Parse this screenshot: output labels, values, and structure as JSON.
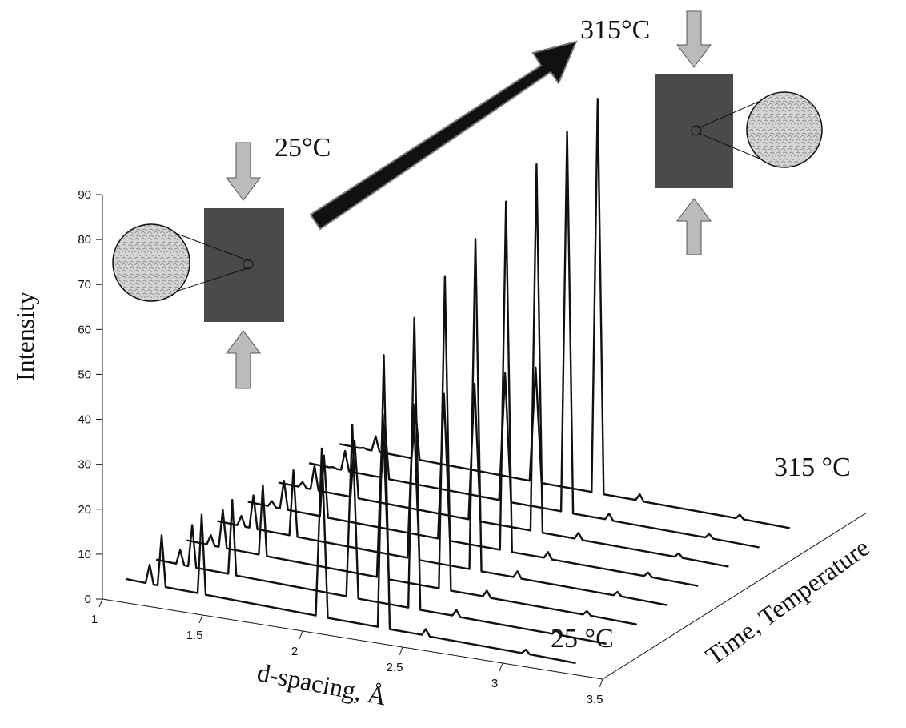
{
  "chart_data": {
    "type": "waterfall",
    "ylabel": "Intensity",
    "xlabel": "d-spacing, Å",
    "zlabel": "Time, Temperature",
    "annotations": [
      "315°C",
      "25°C",
      "315 °C",
      "25 °C"
    ],
    "xlim": [
      1,
      3.5
    ],
    "xticks": [
      1,
      1.5,
      2,
      2.5,
      3,
      3.5
    ],
    "ylim": [
      0,
      90
    ],
    "yticks": [
      0,
      10,
      20,
      30,
      40,
      50,
      60,
      70,
      80,
      90
    ],
    "color": "#111111",
    "x": [
      1.05,
      1.15,
      1.17,
      1.19,
      1.21,
      1.23,
      1.25,
      1.41,
      1.43,
      1.45,
      2.0,
      2.03,
      2.06,
      2.31,
      2.34,
      2.37,
      2.53,
      2.55,
      2.57,
      3.03,
      3.05,
      3.07,
      3.3
    ],
    "series": [
      {
        "values": [
          3,
          2.8,
          7,
          2.7,
          2.7,
          14,
          2.6,
          2.4,
          20,
          2.3,
          1.6,
          39,
          1.5,
          1.3,
          62,
          1.2,
          1.1,
          2.5,
          1.0,
          0.6,
          1.5,
          0.6,
          0.3
        ]
      },
      {
        "values": [
          3,
          2.8,
          6,
          2.7,
          2.7,
          12,
          2.6,
          2.4,
          19,
          2.3,
          1.6,
          40,
          1.5,
          1.3,
          66,
          1.2,
          1.1,
          2.5,
          1.0,
          0.6,
          1.5,
          0.6,
          0.3
        ]
      },
      {
        "values": [
          3,
          2.8,
          5,
          2.7,
          2.7,
          11,
          2.6,
          2.4,
          18,
          2.3,
          1.6,
          38,
          1.5,
          1.3,
          71,
          1.2,
          1.1,
          2.5,
          1.0,
          0.6,
          1.5,
          0.6,
          0.3
        ]
      },
      {
        "values": [
          3,
          2.8,
          5,
          2.7,
          2.7,
          10,
          2.6,
          2.4,
          17,
          2.3,
          1.6,
          36,
          1.5,
          1.3,
          75,
          1.2,
          1.1,
          2.5,
          1.0,
          0.6,
          1.5,
          0.6,
          0.3
        ]
      },
      {
        "values": [
          3,
          2.8,
          4,
          2.7,
          2.7,
          9,
          2.6,
          2.4,
          16,
          2.3,
          1.6,
          34,
          1.5,
          1.3,
          79,
          1.2,
          1.1,
          2.5,
          1.0,
          0.6,
          1.5,
          0.6,
          0.3
        ]
      },
      {
        "values": [
          3,
          2.8,
          4,
          2.7,
          2.7,
          8,
          2.6,
          2.4,
          15,
          2.3,
          1.6,
          32,
          1.5,
          1.3,
          83,
          1.2,
          1.1,
          2.5,
          1.0,
          0.6,
          1.5,
          0.6,
          0.3
        ]
      },
      {
        "values": [
          3,
          2.8,
          3,
          2.7,
          2.7,
          7,
          2.6,
          2.4,
          14,
          2.3,
          1.6,
          30,
          1.5,
          1.3,
          86,
          1.2,
          1.1,
          2.5,
          1.0,
          0.6,
          1.5,
          0.6,
          0.3
        ]
      },
      {
        "values": [
          3,
          2.8,
          3,
          2.7,
          2.7,
          6,
          2.6,
          2.4,
          13,
          2.3,
          1.6,
          27,
          1.5,
          1.3,
          89,
          1.2,
          1.1,
          2.5,
          1.0,
          0.6,
          1.5,
          0.6,
          0.3
        ]
      }
    ]
  }
}
